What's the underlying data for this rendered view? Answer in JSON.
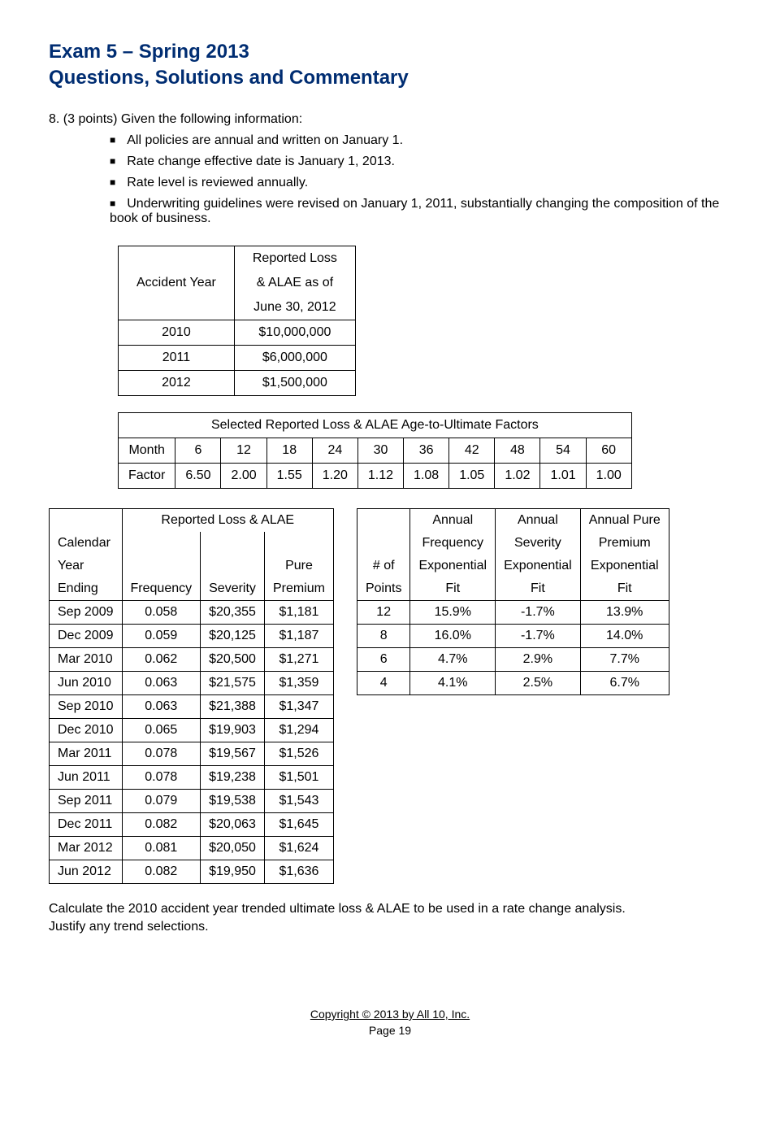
{
  "header": {
    "line1": "Exam 5 – Spring 2013",
    "line2": "Questions, Solutions and Commentary"
  },
  "intro": "8. (3 points)  Given the following information:",
  "bullets": [
    "All policies are annual and written on January 1.",
    "Rate change effective date is January 1, 2013.",
    "Rate level is reviewed annually.",
    "Underwriting guidelines were revised on January 1, 2011, substantially changing the composition of the book of business."
  ],
  "accident": {
    "col1_header": "Accident Year",
    "col2_header_l1": "Reported Loss",
    "col2_header_l2": "& ALAE as of",
    "col2_header_l3": "June 30, 2012",
    "rows": [
      {
        "yr": "2010",
        "val": "$10,000,000"
      },
      {
        "yr": "2011",
        "val": "$6,000,000"
      },
      {
        "yr": "2012",
        "val": "$1,500,000"
      }
    ]
  },
  "factors": {
    "title": "Selected Reported Loss & ALAE Age-to-Ultimate Factors",
    "labels": [
      "Month",
      "6",
      "12",
      "18",
      "24",
      "30",
      "36",
      "42",
      "48",
      "54",
      "60"
    ],
    "values": [
      "Factor",
      "6.50",
      "2.00",
      "1.55",
      "1.20",
      "1.12",
      "1.08",
      "1.05",
      "1.02",
      "1.01",
      "1.00"
    ]
  },
  "cal": {
    "title_span": "Reported Loss & ALAE",
    "h_a1": "Calendar",
    "h_a2": "Year",
    "h_a3": "Ending",
    "h_b3": "Frequency",
    "h_c3": "Severity",
    "h_d2": "Pure",
    "h_d3": "Premium",
    "rows": [
      {
        "a": "Sep 2009",
        "b": "0.058",
        "c": "$20,355",
        "d": "$1,181"
      },
      {
        "a": "Dec 2009",
        "b": "0.059",
        "c": "$20,125",
        "d": "$1,187"
      },
      {
        "a": "Mar 2010",
        "b": "0.062",
        "c": "$20,500",
        "d": "$1,271"
      },
      {
        "a": "Jun 2010",
        "b": "0.063",
        "c": "$21,575",
        "d": "$1,359"
      },
      {
        "a": "Sep 2010",
        "b": "0.063",
        "c": "$21,388",
        "d": "$1,347"
      },
      {
        "a": "Dec 2010",
        "b": "0.065",
        "c": "$19,903",
        "d": "$1,294"
      },
      {
        "a": "Mar 2011",
        "b": "0.078",
        "c": "$19,567",
        "d": "$1,526"
      },
      {
        "a": "Jun 2011",
        "b": "0.078",
        "c": "$19,238",
        "d": "$1,501"
      },
      {
        "a": "Sep 2011",
        "b": "0.079",
        "c": "$19,538",
        "d": "$1,543"
      },
      {
        "a": "Dec 2011",
        "b": "0.082",
        "c": "$20,063",
        "d": "$1,645"
      },
      {
        "a": "Mar 2012",
        "b": "0.081",
        "c": "$20,050",
        "d": "$1,624"
      },
      {
        "a": "Jun 2012",
        "b": "0.082",
        "c": "$19,950",
        "d": "$1,636"
      }
    ]
  },
  "fit": {
    "h_a2": "# of",
    "h_a3": "Points",
    "h_b0": "Annual",
    "h_b1": "Frequency",
    "h_b2": "Exponential",
    "h_b3": "Fit",
    "h_c0": "Annual",
    "h_c1": "Severity",
    "h_c2": "Exponential",
    "h_c3": "Fit",
    "h_d0": "Annual Pure",
    "h_d1": "Premium",
    "h_d2": "Exponential",
    "h_d3": "Fit",
    "rows": [
      {
        "a": "12",
        "b": "15.9%",
        "c": "-1.7%",
        "d": "13.9%"
      },
      {
        "a": "8",
        "b": "16.0%",
        "c": "-1.7%",
        "d": "14.0%"
      },
      {
        "a": "6",
        "b": "4.7%",
        "c": "2.9%",
        "d": "7.7%"
      },
      {
        "a": "4",
        "b": "4.1%",
        "c": "2.5%",
        "d": "6.7%"
      }
    ]
  },
  "bottom": {
    "l1": "Calculate the 2010 accident year trended ultimate loss & ALAE to be used in a rate change analysis.",
    "l2": "Justify any trend selections."
  },
  "footer": {
    "copy": "Copyright © 2013 by All 10, Inc.",
    "page": "Page 19"
  }
}
